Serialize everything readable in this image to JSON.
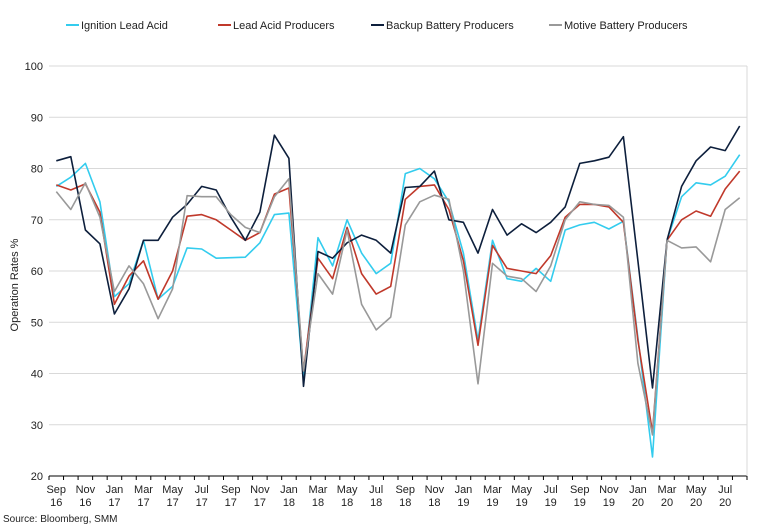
{
  "chart_data": {
    "type": "line",
    "title": "",
    "xlabel": "",
    "ylabel": "Operation Rates %",
    "ylim": [
      20,
      100
    ],
    "yticks": [
      20,
      30,
      40,
      50,
      60,
      70,
      80,
      90,
      100
    ],
    "grid": "horizontal",
    "legend": "top",
    "source": "Source: Bloomberg, SMM",
    "x": [
      "Sep 16",
      "Oct 16",
      "Nov 16",
      "Dec 16",
      "Jan 17",
      "Feb 17",
      "Mar 17",
      "Apr 17",
      "May 17",
      "Jun 17",
      "Jul 17",
      "Aug 17",
      "Sep 17",
      "Oct 17",
      "Nov 17",
      "Dec 17",
      "Jan 18",
      "Feb 18",
      "Mar 18",
      "Apr 18",
      "May 18",
      "Jun 18",
      "Jul 18",
      "Aug 18",
      "Sep 18",
      "Oct 18",
      "Nov 18",
      "Dec 18",
      "Jan 19",
      "Feb 19",
      "Mar 19",
      "Apr 19",
      "May 19",
      "Jun 19",
      "Jul 19",
      "Aug 19",
      "Sep 19",
      "Oct 19",
      "Nov 19",
      "Dec 19",
      "Jan 20",
      "Feb 20",
      "Mar 20",
      "Apr 20",
      "May 20",
      "Jun 20",
      "Jul 20",
      "Aug 20"
    ],
    "xtick_labels": [
      [
        "Sep",
        "16"
      ],
      [
        "Nov",
        "16"
      ],
      [
        "Jan",
        "17"
      ],
      [
        "Mar",
        "17"
      ],
      [
        "May",
        "17"
      ],
      [
        "Jul",
        "17"
      ],
      [
        "Sep",
        "17"
      ],
      [
        "Nov",
        "17"
      ],
      [
        "Jan",
        "18"
      ],
      [
        "Mar",
        "18"
      ],
      [
        "May",
        "18"
      ],
      [
        "Jul",
        "18"
      ],
      [
        "Sep",
        "18"
      ],
      [
        "Nov",
        "18"
      ],
      [
        "Jan",
        "19"
      ],
      [
        "Mar",
        "19"
      ],
      [
        "May",
        "19"
      ],
      [
        "Jul",
        "19"
      ],
      [
        "Sep",
        "19"
      ],
      [
        "Nov",
        "19"
      ],
      [
        "Jan",
        "20"
      ],
      [
        "Mar",
        "20"
      ],
      [
        "May",
        "20"
      ],
      [
        "Jul",
        "20"
      ]
    ],
    "series": [
      {
        "name": "Ignition Lead Acid",
        "color": "#33ccee",
        "values": [
          76.5,
          78.3,
          81.0,
          73.5,
          55.0,
          57.5,
          66.0,
          54.5,
          57.0,
          64.5,
          64.3,
          62.5,
          62.6,
          62.7,
          65.5,
          71.0,
          71.3,
          39.0,
          66.5,
          61.0,
          70.0,
          63.5,
          59.5,
          61.5,
          79.0,
          80.0,
          78.0,
          73.5,
          63.5,
          46.5,
          66.0,
          58.5,
          58.0,
          60.5,
          58.0,
          68.0,
          69.0,
          69.5,
          68.2,
          69.7,
          47.0,
          23.7,
          66.0,
          74.5,
          77.2,
          76.8,
          78.5,
          82.7
        ]
      },
      {
        "name": "Lead Acid Producers",
        "color": "#c0392b",
        "values": [
          76.8,
          75.8,
          77.0,
          71.5,
          53.5,
          59.0,
          62.0,
          54.5,
          60.0,
          70.7,
          71.0,
          70.0,
          68.0,
          66.0,
          67.5,
          75.0,
          76.2,
          40.5,
          62.5,
          58.5,
          68.5,
          59.5,
          55.5,
          57.0,
          74.0,
          76.5,
          76.8,
          72.0,
          62.0,
          45.5,
          65.0,
          60.5,
          60.0,
          59.5,
          63.0,
          70.5,
          73.0,
          73.0,
          72.5,
          69.5,
          46.5,
          28.5,
          66.0,
          70.0,
          71.7,
          70.7,
          76.0,
          79.5
        ]
      },
      {
        "name": "Backup Battery Producers",
        "color": "#0d1f3c",
        "values": [
          81.5,
          82.3,
          68.0,
          65.3,
          51.6,
          56.5,
          66.0,
          66.0,
          70.5,
          73.0,
          76.5,
          75.8,
          70.5,
          66.0,
          71.5,
          86.5,
          82.0,
          37.5,
          63.8,
          62.5,
          65.5,
          67.0,
          66.0,
          63.5,
          76.3,
          76.5,
          79.5,
          70.0,
          69.5,
          63.5,
          72.0,
          67.0,
          69.2,
          67.5,
          69.5,
          72.5,
          81.0,
          81.5,
          82.2,
          86.2,
          62.0,
          37.2,
          66.0,
          76.5,
          81.5,
          84.2,
          83.5,
          88.3
        ]
      },
      {
        "name": "Motive Battery Producers",
        "color": "#999999",
        "values": [
          75.5,
          72.0,
          77.2,
          70.5,
          56.0,
          61.0,
          57.5,
          50.7,
          56.5,
          74.7,
          74.5,
          74.5,
          71.0,
          68.5,
          67.5,
          74.5,
          78.0,
          40.5,
          59.5,
          55.5,
          68.0,
          53.5,
          48.5,
          51.0,
          69.0,
          73.5,
          74.8,
          74.0,
          60.0,
          38.0,
          61.5,
          59.0,
          58.5,
          56.0,
          61.0,
          70.0,
          73.5,
          73.0,
          72.8,
          70.5,
          42.0,
          28.0,
          66.0,
          64.5,
          64.7,
          61.8,
          72.0,
          74.3
        ]
      }
    ]
  }
}
